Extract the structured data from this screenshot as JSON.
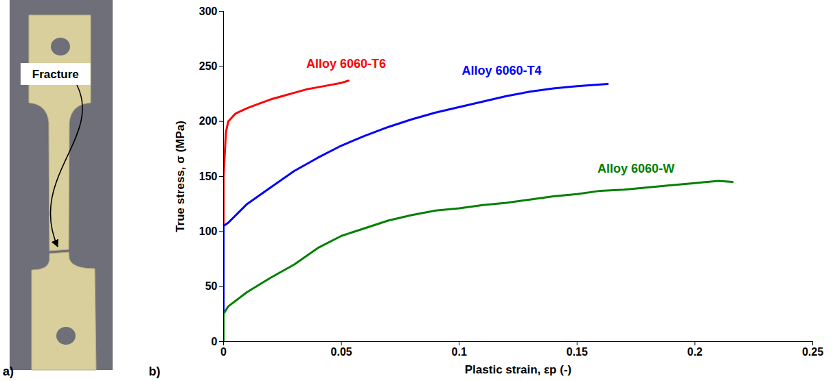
{
  "photo": {
    "panel_label": "a)",
    "annotation": "Fracture"
  },
  "chart_data": {
    "type": "line",
    "panel_label": "b)",
    "x_label": "Plastic strain, εp (-)",
    "y_label": "True stress, σ (MPa)",
    "xlim": [
      0,
      0.25
    ],
    "xticks": [
      0,
      0.05,
      0.1,
      0.15,
      0.2,
      0.25
    ],
    "ylim": [
      0,
      300
    ],
    "yticks": [
      0,
      50,
      100,
      150,
      200,
      250,
      300
    ],
    "grid": false,
    "series": [
      {
        "name": "Alloy 6060-T6",
        "color": "#ff0000",
        "x": [
          0,
          0,
          0.001,
          0.002,
          0.005,
          0.01,
          0.015,
          0.02,
          0.025,
          0.03,
          0.035,
          0.04,
          0.045,
          0.05,
          0.053
        ],
        "values": [
          0,
          150,
          190,
          200,
          207,
          212,
          216,
          220,
          223,
          226,
          229,
          231,
          233,
          235,
          237
        ]
      },
      {
        "name": "Alloy 6060-T4",
        "color": "#0000ff",
        "x": [
          0,
          0,
          0.002,
          0.01,
          0.02,
          0.03,
          0.04,
          0.05,
          0.06,
          0.07,
          0.08,
          0.09,
          0.1,
          0.11,
          0.12,
          0.13,
          0.14,
          0.15,
          0.163
        ],
        "values": [
          0,
          105,
          108,
          125,
          140,
          155,
          167,
          178,
          187,
          195,
          202,
          208,
          213,
          218,
          223,
          227,
          230,
          232,
          234
        ]
      },
      {
        "name": "Alloy 6060-W",
        "color": "#008000",
        "x": [
          0,
          0,
          0.002,
          0.01,
          0.02,
          0.03,
          0.04,
          0.05,
          0.06,
          0.07,
          0.08,
          0.09,
          0.1,
          0.11,
          0.12,
          0.13,
          0.14,
          0.15,
          0.16,
          0.17,
          0.18,
          0.19,
          0.2,
          0.21,
          0.216
        ],
        "values": [
          0,
          25,
          32,
          45,
          58,
          70,
          85,
          96,
          103,
          110,
          115,
          119,
          121,
          124,
          126,
          129,
          132,
          134,
          137,
          138,
          140,
          142,
          144,
          146,
          145
        ]
      }
    ]
  }
}
